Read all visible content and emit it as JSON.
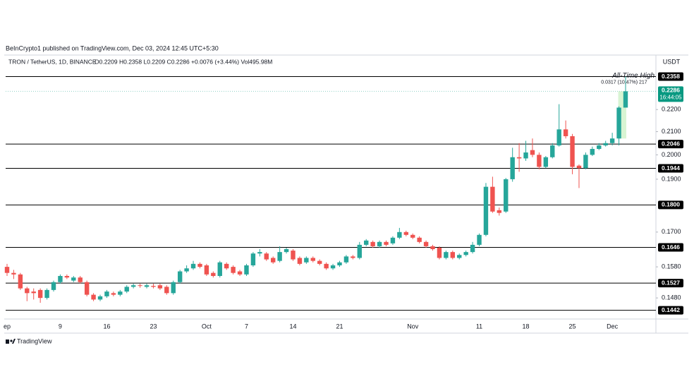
{
  "header": {
    "published": "BeInCrypto1 published on TradingView.com, Dec 03, 2024 12:45 UTC+5:30",
    "symbol": "TRON / TetherUS, 1D, BINANCE",
    "ohlc": "O0.2209 H0.2358 L0.2209 C0.2286 +0.0076 (+3.44%) Vol495.98M",
    "currency": "USDT"
  },
  "footer": {
    "brand": "TradingView"
  },
  "chart_data": {
    "type": "candlestick",
    "log_scale": true,
    "up_color": "#26a69a",
    "down_color": "#ef5350",
    "level_color": "#000000",
    "categories": [
      "ep",
      null,
      null,
      null,
      null,
      null,
      null,
      null,
      "9",
      null,
      null,
      null,
      null,
      null,
      null,
      "16",
      null,
      null,
      null,
      null,
      null,
      null,
      "23",
      null,
      null,
      null,
      null,
      null,
      null,
      null,
      "Oct",
      null,
      null,
      null,
      null,
      null,
      "7",
      null,
      null,
      null,
      null,
      null,
      null,
      "14",
      null,
      null,
      null,
      null,
      null,
      null,
      "21",
      null,
      null,
      null,
      null,
      null,
      null,
      null,
      null,
      null,
      null,
      "Nov",
      null,
      null,
      null,
      null,
      null,
      null,
      null,
      null,
      null,
      "11",
      null,
      null,
      null,
      null,
      null,
      null,
      "18",
      null,
      null,
      null,
      null,
      null,
      null,
      "25",
      null,
      null,
      null,
      null,
      null,
      "Dec",
      null,
      null
    ],
    "open": [
      0.158,
      0.156,
      0.1555,
      0.151,
      0.15,
      0.1505,
      0.148,
      0.1505,
      0.153,
      0.155,
      0.1535,
      0.1545,
      0.153,
      0.149,
      0.1475,
      0.1485,
      0.1495,
      0.149,
      0.15,
      0.1515,
      0.152,
      0.1515,
      0.1518,
      0.152,
      0.1515,
      0.1495,
      0.153,
      0.1565,
      0.1575,
      0.159,
      0.1585,
      0.156,
      0.155,
      0.159,
      0.158,
      0.1565,
      0.1555,
      0.1585,
      0.1625,
      0.1625,
      0.161,
      0.16,
      0.163,
      0.1635,
      0.161,
      0.1595,
      0.161,
      0.16,
      0.159,
      0.1575,
      0.1585,
      0.1595,
      0.1615,
      0.161,
      0.1655,
      0.1665,
      0.165,
      0.1665,
      0.166,
      0.168,
      0.17,
      0.169,
      0.168,
      0.1665,
      0.165,
      0.1645,
      0.161,
      0.163,
      0.161,
      0.162,
      0.163,
      0.1655,
      0.169,
      0.187,
      0.178,
      0.1775,
      0.19,
      0.199,
      0.1985,
      0.202,
      0.2,
      0.195,
      0.199,
      0.204,
      0.211,
      0.208,
      0.1955,
      0.1945,
      0.2,
      0.2025,
      0.204,
      0.205,
      0.207,
      0.2209
    ],
    "high": [
      0.159,
      0.157,
      0.156,
      0.1515,
      0.151,
      0.151,
      0.151,
      0.1535,
      0.1555,
      0.1555,
      0.155,
      0.155,
      0.1535,
      0.1495,
      0.149,
      0.1505,
      0.15,
      0.1505,
      0.152,
      0.1525,
      0.1525,
      0.1525,
      0.1525,
      0.1525,
      0.152,
      0.1535,
      0.157,
      0.1585,
      0.16,
      0.1595,
      0.159,
      0.1565,
      0.16,
      0.1595,
      0.1585,
      0.157,
      0.159,
      0.163,
      0.164,
      0.163,
      0.1615,
      0.165,
      0.1645,
      0.164,
      0.1615,
      0.1615,
      0.1615,
      0.1605,
      0.1595,
      0.159,
      0.16,
      0.162,
      0.162,
      0.1665,
      0.1675,
      0.167,
      0.167,
      0.167,
      0.1685,
      0.1715,
      0.1705,
      0.1695,
      0.1685,
      0.167,
      0.1655,
      0.165,
      0.1635,
      0.1635,
      0.1625,
      0.1635,
      0.1665,
      0.1695,
      0.1885,
      0.191,
      0.179,
      0.1905,
      0.203,
      0.205,
      0.206,
      0.207,
      0.201,
      0.1995,
      0.205,
      0.2225,
      0.215,
      0.209,
      0.196,
      0.201,
      0.2035,
      0.205,
      0.206,
      0.2095,
      0.2215,
      0.2358
    ],
    "low": [
      0.155,
      0.154,
      0.1505,
      0.147,
      0.1475,
      0.1465,
      0.1475,
      0.15,
      0.1525,
      0.154,
      0.153,
      0.1525,
      0.1485,
      0.147,
      0.147,
      0.148,
      0.1485,
      0.1485,
      0.1495,
      0.151,
      0.1512,
      0.151,
      0.151,
      0.1505,
      0.149,
      0.149,
      0.1525,
      0.156,
      0.157,
      0.1575,
      0.155,
      0.1545,
      0.1545,
      0.157,
      0.1555,
      0.155,
      0.155,
      0.158,
      0.1615,
      0.16,
      0.159,
      0.1595,
      0.1625,
      0.16,
      0.1585,
      0.159,
      0.1595,
      0.1585,
      0.157,
      0.157,
      0.158,
      0.159,
      0.1605,
      0.1605,
      0.165,
      0.1645,
      0.1645,
      0.165,
      0.1655,
      0.1675,
      0.1685,
      0.1675,
      0.166,
      0.1645,
      0.1635,
      0.1605,
      0.1605,
      0.1605,
      0.1605,
      0.1615,
      0.1625,
      0.165,
      0.1685,
      0.177,
      0.176,
      0.177,
      0.189,
      0.193,
      0.1975,
      0.199,
      0.194,
      0.1945,
      0.1985,
      0.2035,
      0.207,
      0.192,
      0.1865,
      0.194,
      0.1995,
      0.202,
      0.2035,
      0.204,
      0.204,
      0.2209
    ],
    "close": [
      0.156,
      0.1555,
      0.151,
      0.1495,
      0.1495,
      0.148,
      0.1505,
      0.153,
      0.155,
      0.1545,
      0.1545,
      0.153,
      0.149,
      0.1475,
      0.1485,
      0.15,
      0.149,
      0.15,
      0.1515,
      0.152,
      0.1518,
      0.152,
      0.1515,
      0.151,
      0.1495,
      0.153,
      0.1565,
      0.1575,
      0.159,
      0.158,
      0.1555,
      0.155,
      0.1595,
      0.1575,
      0.156,
      0.1555,
      0.1585,
      0.1625,
      0.163,
      0.1605,
      0.1595,
      0.163,
      0.164,
      0.1605,
      0.159,
      0.161,
      0.16,
      0.159,
      0.1575,
      0.1585,
      0.1595,
      0.1615,
      0.161,
      0.1655,
      0.167,
      0.165,
      0.1665,
      0.1655,
      0.168,
      0.17,
      0.169,
      0.168,
      0.1665,
      0.165,
      0.164,
      0.161,
      0.163,
      0.161,
      0.162,
      0.163,
      0.1655,
      0.169,
      0.187,
      0.1775,
      0.177,
      0.19,
      0.199,
      0.1985,
      0.201,
      0.2,
      0.195,
      0.199,
      0.204,
      0.211,
      0.208,
      0.195,
      0.1945,
      0.2,
      0.2025,
      0.204,
      0.205,
      0.207,
      0.2209,
      0.2286
    ],
    "ylim": [
      0.142,
      0.246
    ],
    "yticks": [
      {
        "value": 0.148,
        "label": "0.1480"
      },
      {
        "value": 0.158,
        "label": "0.1580"
      },
      {
        "value": 0.17,
        "label": "0.1700"
      },
      {
        "value": 0.19,
        "label": "0.1900"
      },
      {
        "value": 0.2,
        "label": "0.2000"
      },
      {
        "value": 0.21,
        "label": "0.2100"
      },
      {
        "value": 0.22,
        "label": "0.2200"
      }
    ],
    "levels": [
      0.2358,
      0.2046,
      0.1944,
      {
        "value": 0.18,
        "label": "0.1800"
      },
      0.1646,
      0.1527,
      0.1442
    ],
    "last_price": {
      "value": 0.2286,
      "countdown": "16:44:05",
      "color": "#089981"
    },
    "annotations": {
      "ath": "All-Time High",
      "measure": "0.0317 (10.47%) 217"
    }
  }
}
